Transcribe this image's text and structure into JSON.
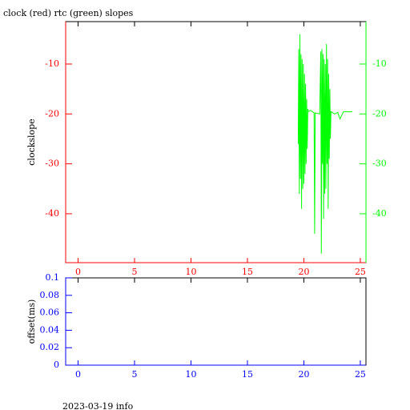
{
  "chart_data": [
    {
      "type": "line",
      "title": "clock (red) rtc (green) slopes",
      "ylabel": "clockslope",
      "xlim": [
        -1.1,
        25.5
      ],
      "xticks": [
        0,
        5,
        10,
        15,
        20,
        25
      ],
      "ylim": [
        -49.8,
        -1.5
      ],
      "yticks": [
        -10,
        -20,
        -30,
        -40
      ],
      "y2lim": [
        -49.8,
        -1.5
      ],
      "y2ticks": [
        -10,
        -20,
        -30,
        -40
      ],
      "tick_color": "#ff0000",
      "y2tick_color": "#00ff00",
      "x": [
        19.5,
        19.55,
        19.6,
        19.65,
        19.7,
        19.75,
        19.8,
        19.85,
        19.9,
        19.95,
        20.0,
        20.05,
        20.1,
        20.15,
        20.2,
        20.25,
        20.3,
        20.35,
        20.4,
        20.6,
        20.8,
        20.9,
        20.95,
        21.0,
        21.2,
        21.4,
        21.5,
        21.55,
        21.6,
        21.65,
        21.7,
        21.75,
        21.8,
        21.85,
        21.9,
        21.95,
        22.0,
        22.05,
        22.1,
        22.15,
        22.2,
        22.25,
        22.3,
        22.35,
        22.4,
        22.7,
        23.0,
        23.2,
        23.5,
        23.8,
        24.0,
        24.3
      ],
      "series": [
        {
          "color": "#00ff00",
          "axis": "y2",
          "values": [
            -26,
            -7,
            -36,
            -4,
            -33,
            -8,
            -39,
            -9,
            -35,
            -10,
            -34,
            -12,
            -32,
            -14,
            -30,
            -17,
            -27,
            -19,
            -19.5,
            -19.3,
            -19.6,
            -19.8,
            -44,
            -19.8,
            -19.9,
            -20,
            -7.5,
            -48,
            -7,
            -30,
            -8,
            -41,
            -9,
            -36,
            -10,
            -35,
            -6,
            -30,
            -9,
            -39,
            -12,
            -29,
            -15,
            -25,
            -19.5,
            -20,
            -19.7,
            -21,
            -19.6,
            -19.5,
            -19.6,
            -19.5
          ]
        }
      ]
    },
    {
      "type": "line",
      "ylabel": "offset(ms)",
      "xlim": [
        -1.1,
        25.5
      ],
      "xticks": [
        0,
        5,
        10,
        15,
        20,
        25
      ],
      "ylim": [
        0,
        0.1
      ],
      "yticks": [
        0,
        0.02,
        0.04,
        0.06,
        0.08,
        0.1
      ],
      "tick_color": "#0000ff",
      "series": []
    }
  ],
  "footer": "2023-03-19 info"
}
